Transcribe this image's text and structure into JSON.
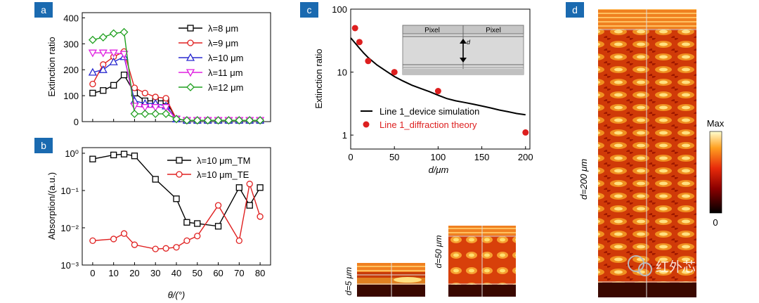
{
  "panel_letters": {
    "a": "a",
    "b": "b",
    "c": "c",
    "d": "d"
  },
  "watermark": "红外芯闻",
  "chart_data": [
    {
      "id": "a",
      "type": "line",
      "ylabel": "Extinction ratio",
      "xlabel": "",
      "x": [
        0,
        5,
        10,
        15,
        20,
        25,
        30,
        35,
        40,
        45,
        50,
        55,
        60,
        65,
        70,
        75,
        80
      ],
      "xlim": [
        -5,
        85
      ],
      "ylim": [
        0,
        420
      ],
      "yticks": [
        0,
        100,
        200,
        300,
        400
      ],
      "show_xtick_labels": false,
      "legend": "top-right",
      "series": [
        {
          "name": "λ=8 μm",
          "color": "#000000",
          "marker": "square",
          "values": [
            110,
            120,
            140,
            180,
            110,
            80,
            80,
            80,
            10,
            5,
            5,
            5,
            5,
            5,
            5,
            5,
            5
          ]
        },
        {
          "name": "λ=9 μm",
          "color": "#e02020",
          "marker": "circle",
          "values": [
            145,
            220,
            250,
            270,
            130,
            110,
            95,
            90,
            10,
            5,
            5,
            5,
            5,
            5,
            5,
            5,
            5
          ]
        },
        {
          "name": "λ=10 μm",
          "color": "#2a2ad0",
          "marker": "triangle",
          "values": [
            190,
            200,
            230,
            250,
            80,
            70,
            70,
            60,
            10,
            5,
            5,
            5,
            5,
            5,
            5,
            5,
            5
          ]
        },
        {
          "name": "λ=11 μm",
          "color": "#e020e0",
          "marker": "tri-down",
          "values": [
            265,
            265,
            265,
            260,
            60,
            55,
            55,
            55,
            10,
            5,
            5,
            5,
            5,
            5,
            5,
            5,
            5
          ]
        },
        {
          "name": "λ=12 μm",
          "color": "#20a020",
          "marker": "diamond",
          "values": [
            315,
            325,
            340,
            345,
            30,
            30,
            30,
            30,
            10,
            5,
            5,
            5,
            5,
            5,
            5,
            5,
            5
          ]
        }
      ]
    },
    {
      "id": "b",
      "type": "line",
      "yscale": "log",
      "ylabel": "Absorption/(a.u.)",
      "xlabel": "θ/(°)",
      "xlim": [
        -5,
        85
      ],
      "ylim": [
        0.001,
        1
      ],
      "xticks": [
        0,
        10,
        20,
        30,
        40,
        50,
        60,
        70,
        80
      ],
      "yticks": [
        "10⁻³",
        "10⁻²",
        "10⁻¹",
        "10⁰"
      ],
      "legend": "top-right",
      "series": [
        {
          "name": "λ=10 μm_TM",
          "color": "#000000",
          "marker": "square",
          "x": [
            0,
            10,
            15,
            20,
            30,
            40,
            45,
            50,
            60,
            70,
            75,
            80
          ],
          "values": [
            0.7,
            0.9,
            0.95,
            0.85,
            0.2,
            0.06,
            0.014,
            0.013,
            0.011,
            0.12,
            0.04,
            0.12
          ]
        },
        {
          "name": "λ=10 μm_TE",
          "color": "#e02020",
          "marker": "circle",
          "x": [
            0,
            10,
            15,
            20,
            30,
            35,
            40,
            45,
            50,
            60,
            70,
            75,
            80
          ],
          "values": [
            0.0045,
            0.005,
            0.007,
            0.0035,
            0.0027,
            0.0028,
            0.003,
            0.0045,
            0.006,
            0.04,
            0.0045,
            0.15,
            0.02
          ]
        }
      ]
    },
    {
      "id": "c",
      "type": "line",
      "yscale": "log",
      "ylabel": "Extinction ratio",
      "xlabel": "d/μm",
      "xlim": [
        0,
        205
      ],
      "ylim": [
        0.6,
        100
      ],
      "xticks": [
        0,
        50,
        100,
        150,
        200
      ],
      "yticks": [
        1,
        10,
        100
      ],
      "legend": "bottom-right",
      "series": [
        {
          "name": "Line 1_device simulation",
          "color": "#000000",
          "style": "line",
          "x": [
            0,
            5,
            10,
            15,
            20,
            30,
            40,
            50,
            60,
            70,
            80,
            90,
            100,
            110,
            120,
            130,
            140,
            150,
            160,
            170,
            180,
            190,
            200
          ],
          "values": [
            35,
            29,
            24,
            20,
            17,
            13,
            10.5,
            8.5,
            7.2,
            6.2,
            5.5,
            4.9,
            4.3,
            3.8,
            3.5,
            3.3,
            3.1,
            2.9,
            2.7,
            2.5,
            2.35,
            2.2,
            2.1
          ]
        },
        {
          "name": "Line 1_diffraction theory",
          "color": "#dd1f1f",
          "style": "dots",
          "x": [
            5,
            10,
            20,
            50,
            100,
            200
          ],
          "values": [
            50,
            30,
            15,
            10,
            5,
            1.1
          ]
        }
      ],
      "inset": {
        "label_left": "Pixel",
        "label_right": "Pixel",
        "dim_label": "d"
      }
    }
  ],
  "fields": {
    "d5": {
      "label": "d=5 μm"
    },
    "d50": {
      "label": "d=50 μm"
    },
    "d200": {
      "label": "d=200 μm"
    },
    "colorbar": {
      "max_label": "Max",
      "min_label": "0"
    }
  }
}
